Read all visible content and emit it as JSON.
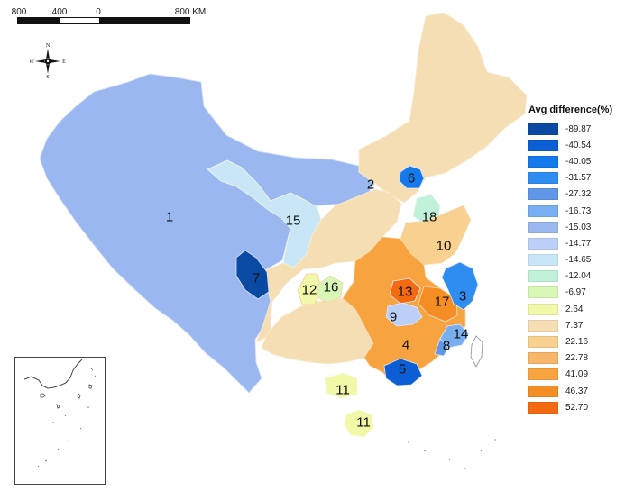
{
  "scale_bar": {
    "labels": [
      "800",
      "400",
      "0",
      "800 KM"
    ]
  },
  "north_arrow": {
    "n": "N",
    "s": "S",
    "e": "E",
    "w": "W"
  },
  "legend": {
    "title": "Avg difference(%)",
    "items": [
      {
        "value": "-89.87",
        "color": "#0b4aa2"
      },
      {
        "value": "-40.54",
        "color": "#0b5ed4"
      },
      {
        "value": "-40.05",
        "color": "#1479eb"
      },
      {
        "value": "-31.57",
        "color": "#2f8cf0"
      },
      {
        "value": "-27.32",
        "color": "#5f96e6"
      },
      {
        "value": "-16.73",
        "color": "#78aef2"
      },
      {
        "value": "-15.03",
        "color": "#9ab8ef"
      },
      {
        "value": "-14.77",
        "color": "#bcd0f7"
      },
      {
        "value": "-14.65",
        "color": "#c9e6f6"
      },
      {
        "value": "-12.04",
        "color": "#bff2d9"
      },
      {
        "value": "-6.97",
        "color": "#d8f7b7"
      },
      {
        "value": "2.64",
        "color": "#f1f8a8"
      },
      {
        "value": "7.37",
        "color": "#f5deb3"
      },
      {
        "value": "22.16",
        "color": "#f8d08f"
      },
      {
        "value": "22.78",
        "color": "#f7b66a"
      },
      {
        "value": "41.09",
        "color": "#f7a340"
      },
      {
        "value": "46.37",
        "color": "#f58d25"
      },
      {
        "value": "52.70",
        "color": "#f36a12"
      }
    ]
  },
  "regions": [
    {
      "label": "1",
      "color": "#9ab8ef"
    },
    {
      "label": "2",
      "color": "#f5deb3"
    },
    {
      "label": "3",
      "color": "#2f8cf0"
    },
    {
      "label": "4",
      "color": "#f7a340"
    },
    {
      "label": "5",
      "color": "#0b5ed4"
    },
    {
      "label": "6",
      "color": "#1479eb"
    },
    {
      "label": "7",
      "color": "#0b4aa2"
    },
    {
      "label": "8",
      "color": "#5f96e6"
    },
    {
      "label": "9",
      "color": "#bcd0f7"
    },
    {
      "label": "10",
      "color": "#f8d08f"
    },
    {
      "label": "11",
      "color": "#f1f8a8"
    },
    {
      "label": "11",
      "color": "#f1f8a8"
    },
    {
      "label": "12",
      "color": "#f36a12"
    },
    {
      "label": "13",
      "color": "#c9e6f6"
    },
    {
      "label": "14",
      "color": "#78aef2"
    },
    {
      "label": "15",
      "color": "#d8f7b7"
    },
    {
      "label": "16",
      "color": "#f58d25"
    },
    {
      "label": "17",
      "color": "#f7b66a"
    },
    {
      "label": "18",
      "color": "#bff2d9"
    }
  ]
}
